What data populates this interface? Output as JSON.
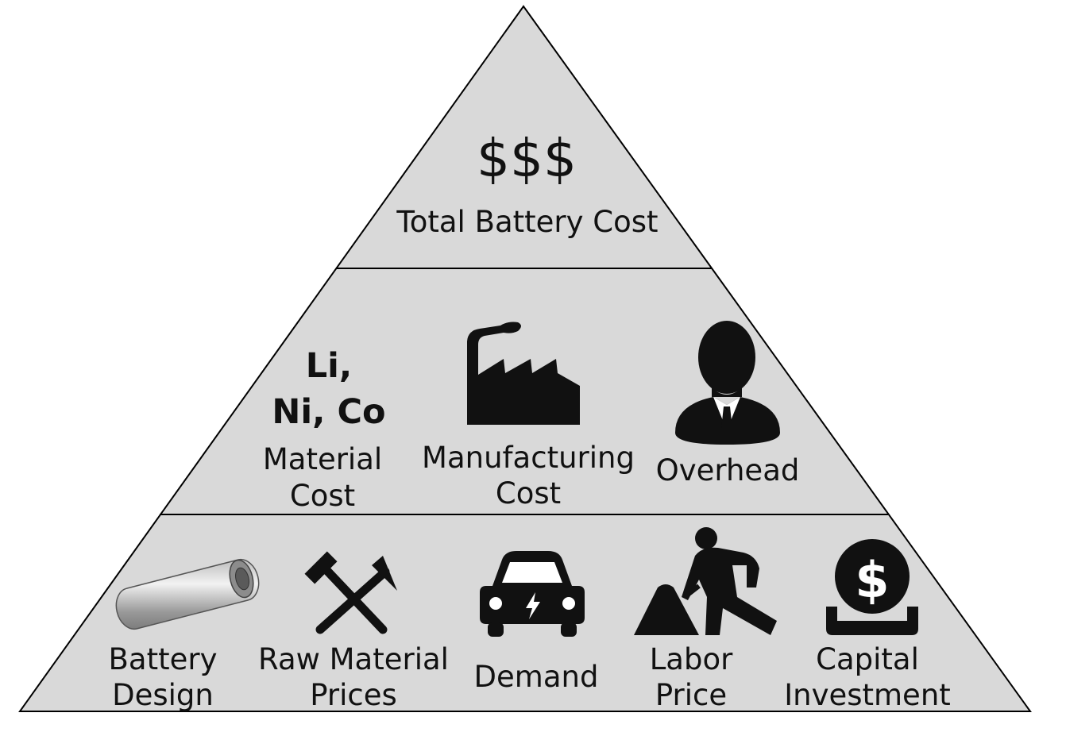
{
  "top": {
    "symbol": "$$$",
    "label": "Total Battery Cost"
  },
  "middle": {
    "material": {
      "elements_line1": "Li,",
      "elements_line2": "Ni, Co",
      "label_line1": "Material",
      "label_line2": "Cost"
    },
    "manufacturing": {
      "icon": "factory-icon",
      "label_line1": "Manufacturing",
      "label_line2": "Cost"
    },
    "overhead": {
      "icon": "businessman-icon",
      "label": "Overhead"
    }
  },
  "bottom": {
    "battery_design": {
      "icon": "battery-cell-icon",
      "label_line1": "Battery",
      "label_line2": "Design"
    },
    "raw_material_prices": {
      "icon": "crossed-hammers-icon",
      "label_line1": "Raw Material",
      "label_line2": "Prices"
    },
    "demand": {
      "icon": "electric-car-icon",
      "label": "Demand"
    },
    "labor_price": {
      "icon": "worker-shoveling-icon",
      "label_line1": "Labor",
      "label_line2": "Price"
    },
    "capital_investment": {
      "icon": "dollar-coin-icon",
      "label_line1": "Capital",
      "label_line2": "Investment"
    }
  },
  "colors": {
    "fill": "#d9d9d9",
    "stroke": "#000000",
    "icon": "#111111"
  }
}
